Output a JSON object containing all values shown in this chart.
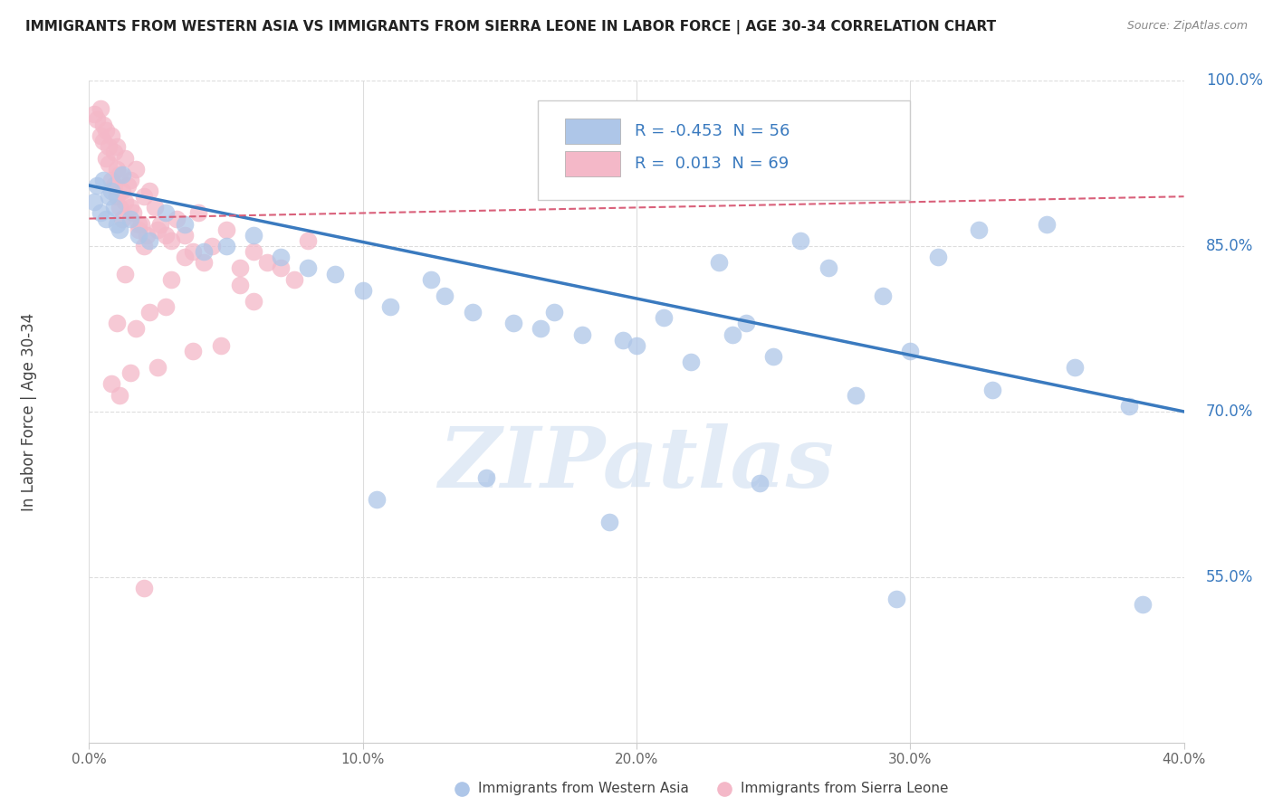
{
  "title": "IMMIGRANTS FROM WESTERN ASIA VS IMMIGRANTS FROM SIERRA LEONE IN LABOR FORCE | AGE 30-34 CORRELATION CHART",
  "source": "Source: ZipAtlas.com",
  "ylabel": "In Labor Force | Age 30-34",
  "legend_labels": [
    "Immigrants from Western Asia",
    "Immigrants from Sierra Leone"
  ],
  "r_western_asia": "-0.453",
  "n_western_asia": "56",
  "r_sierra_leone": "0.013",
  "n_sierra_leone": "69",
  "western_asia_color": "#aec6e8",
  "sierra_leone_color": "#f4b8c8",
  "trend_western_asia_color": "#3a7abf",
  "trend_sierra_leone_color": "#d9607a",
  "background_color": "#ffffff",
  "grid_color": "#dddddd",
  "watermark": "ZIPatlas",
  "western_asia_x": [
    0.2,
    0.3,
    0.4,
    0.5,
    0.6,
    0.7,
    0.8,
    0.9,
    1.0,
    1.1,
    1.2,
    1.5,
    1.8,
    2.2,
    2.8,
    3.5,
    4.2,
    5.0,
    6.0,
    7.0,
    8.0,
    9.0,
    10.0,
    11.0,
    12.5,
    13.0,
    14.0,
    15.5,
    16.5,
    17.0,
    18.0,
    19.5,
    20.0,
    21.0,
    22.0,
    23.0,
    24.0,
    25.0,
    26.0,
    27.0,
    28.0,
    29.0,
    30.0,
    31.0,
    32.5,
    33.0,
    35.0,
    36.0,
    38.0,
    38.5,
    24.5,
    14.5,
    10.5,
    19.0,
    29.5,
    23.5
  ],
  "western_asia_y": [
    89.0,
    90.5,
    88.0,
    91.0,
    87.5,
    89.5,
    90.0,
    88.5,
    87.0,
    86.5,
    91.5,
    87.5,
    86.0,
    85.5,
    88.0,
    87.0,
    84.5,
    85.0,
    86.0,
    84.0,
    83.0,
    82.5,
    81.0,
    79.5,
    82.0,
    80.5,
    79.0,
    78.0,
    77.5,
    79.0,
    77.0,
    76.5,
    76.0,
    78.5,
    74.5,
    83.5,
    78.0,
    75.0,
    85.5,
    83.0,
    71.5,
    80.5,
    75.5,
    84.0,
    86.5,
    72.0,
    87.0,
    74.0,
    70.5,
    52.5,
    63.5,
    64.0,
    62.0,
    60.0,
    53.0,
    77.0
  ],
  "sierra_leone_x": [
    0.2,
    0.3,
    0.4,
    0.4,
    0.5,
    0.5,
    0.6,
    0.6,
    0.7,
    0.7,
    0.8,
    0.8,
    0.9,
    0.9,
    1.0,
    1.0,
    1.0,
    1.1,
    1.1,
    1.2,
    1.2,
    1.3,
    1.3,
    1.4,
    1.5,
    1.6,
    1.7,
    1.8,
    1.9,
    2.0,
    2.1,
    2.2,
    2.4,
    2.6,
    2.8,
    3.0,
    3.2,
    3.5,
    3.8,
    4.0,
    4.5,
    5.0,
    5.5,
    6.0,
    6.5,
    7.0,
    7.5,
    8.0,
    1.5,
    1.8,
    2.5,
    3.5,
    2.0,
    4.2,
    3.0,
    5.5,
    1.3,
    2.8,
    6.0,
    1.0,
    2.2,
    1.7,
    4.8,
    3.8,
    2.5,
    1.5,
    0.8,
    1.1,
    2.0
  ],
  "sierra_leone_y": [
    97.0,
    96.5,
    97.5,
    95.0,
    96.0,
    94.5,
    95.5,
    93.0,
    94.0,
    92.5,
    95.0,
    91.0,
    93.5,
    90.5,
    94.0,
    92.0,
    89.5,
    91.5,
    88.5,
    90.0,
    87.5,
    93.0,
    89.0,
    90.5,
    91.0,
    88.0,
    92.0,
    86.5,
    87.0,
    89.5,
    86.0,
    90.0,
    88.5,
    87.0,
    86.0,
    85.5,
    87.5,
    86.0,
    84.5,
    88.0,
    85.0,
    86.5,
    83.0,
    84.5,
    83.5,
    83.0,
    82.0,
    85.5,
    88.5,
    87.0,
    86.5,
    84.0,
    85.0,
    83.5,
    82.0,
    81.5,
    82.5,
    79.5,
    80.0,
    78.0,
    79.0,
    77.5,
    76.0,
    75.5,
    74.0,
    73.5,
    72.5,
    71.5,
    54.0
  ],
  "xmin": 0.0,
  "xmax": 40.0,
  "ymin": 40.0,
  "ymax": 100.0,
  "yticks": [
    55.0,
    70.0,
    85.0,
    100.0
  ],
  "xtick_positions": [
    0.0,
    10.0,
    20.0,
    30.0,
    40.0
  ],
  "trend_wa_x0": 0.0,
  "trend_wa_y0": 90.5,
  "trend_wa_x1": 40.0,
  "trend_wa_y1": 70.0,
  "trend_sl_x0": 0.0,
  "trend_sl_y0": 87.5,
  "trend_sl_x1": 40.0,
  "trend_sl_y1": 89.5
}
